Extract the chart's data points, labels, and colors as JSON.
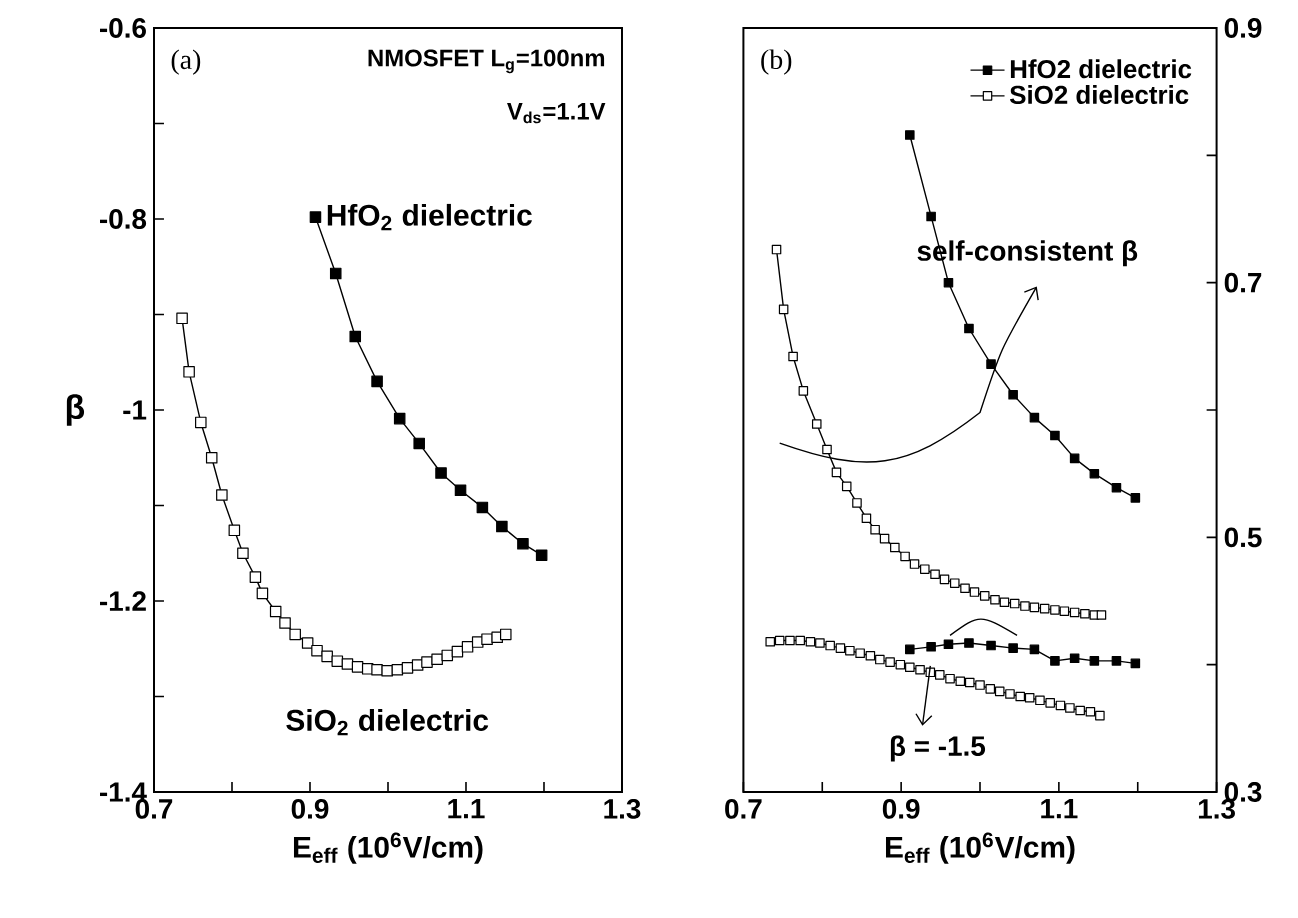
{
  "chart_data": [
    {
      "type": "line",
      "xlabel": "E$_{eff}$ (10$^{6}$V/cm)",
      "ylabel": "β",
      "xlim": [
        0.7,
        1.3
      ],
      "ylim": [
        -1.4,
        -0.6
      ],
      "xticks": [
        0.7,
        {
          "value": 0.8,
          "label": null
        },
        0.9,
        {
          "value": 1.0,
          "label": null
        },
        1.1,
        {
          "value": 1.2,
          "label": null
        },
        1.3
      ],
      "yticks": [
        -1.4,
        {
          "value": -1.3,
          "label": null
        },
        -1.2,
        {
          "value": -1.1,
          "label": null
        },
        -1,
        {
          "value": -0.9,
          "label": null
        },
        -0.8,
        {
          "value": -0.7,
          "label": null
        },
        -0.6
      ],
      "marker": "square",
      "line_style": "solid",
      "legend": false,
      "annotations": [
        "(a)",
        "NMOSFET L$_{g}$=100nm",
        "V$_{ds}$=1.1V"
      ],
      "series": [
        {
          "name": "HfO$_{2}$ dielectric",
          "color": "#000000",
          "x": [
            0.907,
            0.933,
            0.958,
            0.986,
            1.015,
            1.04,
            1.068,
            1.093,
            1.121,
            1.146,
            1.173,
            1.197
          ],
          "values": [
            -0.798,
            -0.857,
            -0.923,
            -0.97,
            -1.009,
            -1.035,
            -1.066,
            -1.084,
            -1.102,
            -1.122,
            -1.14,
            -1.152
          ]
        },
        {
          "name": "SiO$_{2}$ dielectric",
          "color": "#ffffff",
          "x": [
            0.736,
            0.745,
            0.76,
            0.774,
            0.787,
            0.803,
            0.814,
            0.83,
            0.839,
            0.856,
            0.868,
            0.881,
            0.897,
            0.909,
            0.922,
            0.935,
            0.948,
            0.961,
            0.974,
            0.986,
            0.999,
            1.012,
            1.025,
            1.038,
            1.05,
            1.063,
            1.076,
            1.089,
            1.102,
            1.115,
            1.127,
            1.14,
            1.151
          ],
          "values": [
            -0.904,
            -0.96,
            -1.013,
            -1.05,
            -1.089,
            -1.126,
            -1.15,
            -1.175,
            -1.192,
            -1.211,
            -1.223,
            -1.235,
            -1.244,
            -1.252,
            -1.258,
            -1.263,
            -1.266,
            -1.269,
            -1.271,
            -1.272,
            -1.273,
            -1.272,
            -1.27,
            -1.267,
            -1.264,
            -1.261,
            -1.257,
            -1.253,
            -1.248,
            -1.243,
            -1.24,
            -1.238,
            -1.235
          ]
        }
      ]
    },
    {
      "type": "line",
      "xlabel": "E$_{eff}$ (10$^{6}$V/cm)",
      "xlim": [
        0.7,
        1.3
      ],
      "ylim": [
        0.3,
        0.9
      ],
      "xticks": [
        0.7,
        {
          "value": 0.8,
          "label": null
        },
        0.9,
        {
          "value": 1.0,
          "label": null
        },
        1.1,
        {
          "value": 1.2,
          "label": null
        },
        1.3
      ],
      "yticks": [
        0.3,
        {
          "value": 0.4,
          "label": null
        },
        0.5,
        {
          "value": 0.6,
          "label": null
        },
        0.7,
        {
          "value": 0.8,
          "label": null
        },
        0.9
      ],
      "marker": "square",
      "line_style": "solid",
      "legend": "top right",
      "annotations": [
        "(b)",
        "self-consistent β",
        {
          "text": "β = -1.5",
          "x": 0.937,
          "y": 0.399
        }
      ],
      "series": [
        {
          "name": "HfO2 dielectric",
          "color": "#000000",
          "x": [
            0.911,
            0.938,
            0.96,
            0.986,
            1.014,
            1.042,
            1.069,
            1.095,
            1.12,
            1.145,
            1.173,
            1.197
          ],
          "values": [
            0.816,
            0.752,
            0.7,
            0.664,
            0.636,
            0.612,
            0.594,
            0.58,
            0.562,
            0.55,
            0.539,
            0.531
          ]
        },
        {
          "name": "SiO2 dielectric",
          "color": "#ffffff",
          "x": [
            0.742,
            0.751,
            0.763,
            0.776,
            0.793,
            0.806,
            0.818,
            0.831,
            0.844,
            0.856,
            0.867,
            0.879,
            0.892,
            0.905,
            0.917,
            0.93,
            0.943,
            0.955,
            0.968,
            0.981,
            0.993,
            1.006,
            1.019,
            1.031,
            1.044,
            1.057,
            1.069,
            1.082,
            1.095,
            1.107,
            1.12,
            1.133,
            1.145,
            1.154
          ],
          "values": [
            0.726,
            0.679,
            0.642,
            0.615,
            0.589,
            0.569,
            0.551,
            0.54,
            0.527,
            0.515,
            0.506,
            0.499,
            0.492,
            0.485,
            0.479,
            0.475,
            0.471,
            0.467,
            0.464,
            0.46,
            0.457,
            0.454,
            0.451,
            0.449,
            0.448,
            0.446,
            0.445,
            0.444,
            0.443,
            0.442,
            0.441,
            0.44,
            0.439,
            0.439
          ]
        },
        {
          "color": "#000000",
          "x": [
            0.911,
            0.938,
            0.96,
            0.986,
            1.014,
            1.042,
            1.069,
            1.095,
            1.12,
            1.145,
            1.173,
            1.197
          ],
          "values": [
            0.412,
            0.414,
            0.416,
            0.417,
            0.415,
            0.413,
            0.412,
            0.403,
            0.405,
            0.403,
            0.403,
            0.401
          ]
        },
        {
          "color": "#ffffff",
          "x": [
            0.734,
            0.746,
            0.759,
            0.772,
            0.785,
            0.797,
            0.81,
            0.823,
            0.835,
            0.848,
            0.861,
            0.873,
            0.886,
            0.899,
            0.911,
            0.924,
            0.937,
            0.949,
            0.962,
            0.975,
            0.987,
            1.0,
            1.013,
            1.025,
            1.038,
            1.051,
            1.063,
            1.076,
            1.089,
            1.102,
            1.114,
            1.127,
            1.14,
            1.152
          ],
          "values": [
            0.418,
            0.419,
            0.419,
            0.419,
            0.418,
            0.417,
            0.415,
            0.413,
            0.411,
            0.409,
            0.407,
            0.404,
            0.402,
            0.4,
            0.398,
            0.396,
            0.394,
            0.392,
            0.389,
            0.387,
            0.386,
            0.384,
            0.381,
            0.379,
            0.377,
            0.375,
            0.374,
            0.372,
            0.37,
            0.368,
            0.366,
            0.364,
            0.363,
            0.36
          ]
        }
      ]
    }
  ]
}
